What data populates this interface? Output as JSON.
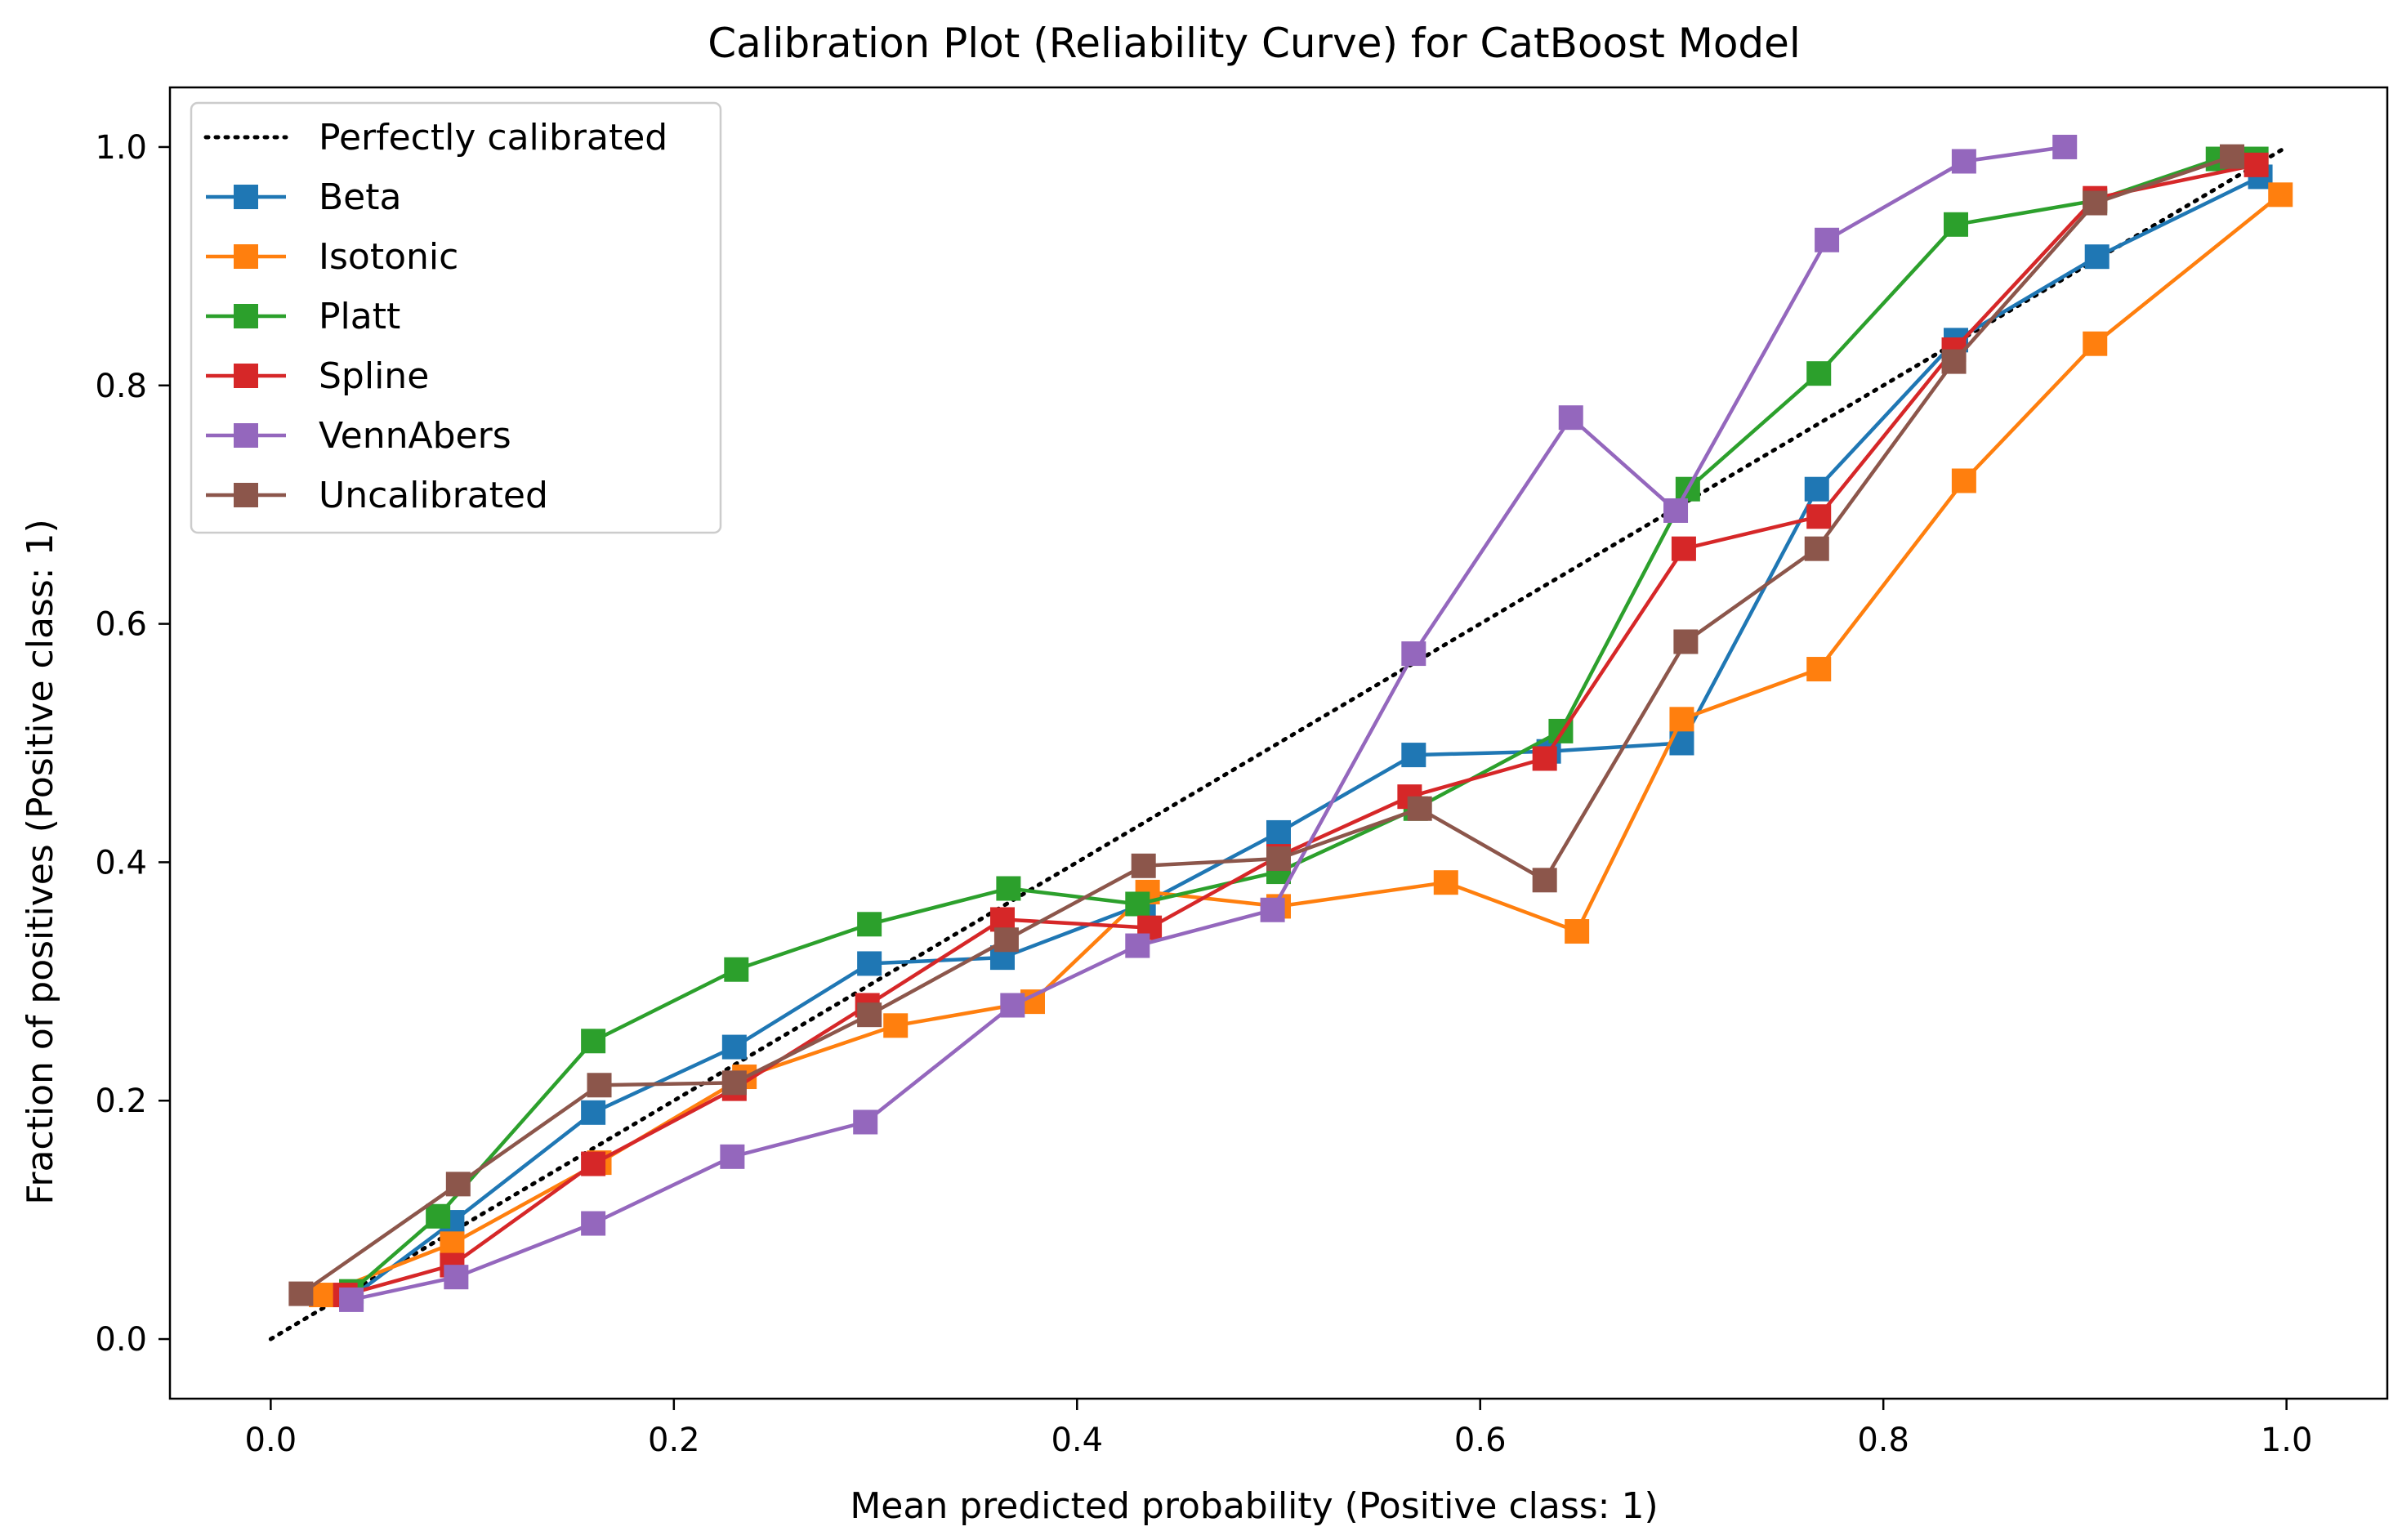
{
  "chart_data": {
    "type": "line",
    "title": "Calibration Plot (Reliability Curve) for CatBoost Model",
    "xlabel": "Mean predicted probability (Positive class: 1)",
    "ylabel": "Fraction of positives (Positive class: 1)",
    "xlim": [
      -0.05,
      1.05
    ],
    "ylim": [
      -0.05,
      1.05
    ],
    "xticks": [
      0.0,
      0.2,
      0.4,
      0.6,
      0.8,
      1.0
    ],
    "xtick_labels": [
      "0.0",
      "0.2",
      "0.4",
      "0.6",
      "0.8",
      "1.0"
    ],
    "yticks": [
      0.0,
      0.2,
      0.4,
      0.6,
      0.8,
      1.0
    ],
    "ytick_labels": [
      "0.0",
      "0.2",
      "0.4",
      "0.6",
      "0.8",
      "1.0"
    ],
    "grid": false,
    "legend_position": "top-left",
    "reference": {
      "name": "Perfectly calibrated",
      "color": "#000000",
      "style": "dotted",
      "x": [
        0.0,
        1.0
      ],
      "y": [
        0.0,
        1.0
      ]
    },
    "series": [
      {
        "name": "Beta",
        "color": "#1f77b4",
        "x": [
          0.04,
          0.09,
          0.16,
          0.23,
          0.297,
          0.363,
          0.433,
          0.5,
          0.567,
          0.634,
          0.7,
          0.767,
          0.836,
          0.906,
          0.987
        ],
        "y": [
          0.035,
          0.098,
          0.19,
          0.245,
          0.315,
          0.32,
          0.365,
          0.425,
          0.49,
          0.493,
          0.5,
          0.713,
          0.838,
          0.908,
          0.975
        ]
      },
      {
        "name": "Isotonic",
        "color": "#ff7f0e",
        "x": [
          0.025,
          0.09,
          0.163,
          0.235,
          0.31,
          0.378,
          0.435,
          0.5,
          0.583,
          0.648,
          0.7,
          0.768,
          0.84,
          0.905,
          0.997
        ],
        "y": [
          0.037,
          0.08,
          0.148,
          0.22,
          0.263,
          0.283,
          0.375,
          0.363,
          0.383,
          0.342,
          0.52,
          0.562,
          0.72,
          0.835,
          0.96
        ]
      },
      {
        "name": "Platt",
        "color": "#2ca02c",
        "x": [
          0.04,
          0.083,
          0.16,
          0.231,
          0.297,
          0.366,
          0.43,
          0.5,
          0.568,
          0.64,
          0.703,
          0.768,
          0.836,
          0.905,
          0.966,
          0.985
        ],
        "y": [
          0.04,
          0.103,
          0.25,
          0.31,
          0.348,
          0.378,
          0.365,
          0.392,
          0.445,
          0.51,
          0.713,
          0.81,
          0.935,
          0.955,
          0.99,
          0.99
        ]
      },
      {
        "name": "Spline",
        "color": "#d62728",
        "x": [
          0.037,
          0.09,
          0.16,
          0.23,
          0.296,
          0.363,
          0.436,
          0.5,
          0.565,
          0.632,
          0.701,
          0.768,
          0.835,
          0.905,
          0.985
        ],
        "y": [
          0.037,
          0.062,
          0.147,
          0.21,
          0.28,
          0.352,
          0.345,
          0.405,
          0.455,
          0.487,
          0.663,
          0.69,
          0.83,
          0.957,
          0.985
        ]
      },
      {
        "name": "VennAbers",
        "color": "#9467bd",
        "x": [
          0.04,
          0.092,
          0.16,
          0.229,
          0.295,
          0.368,
          0.43,
          0.497,
          0.567,
          0.645,
          0.697,
          0.772,
          0.84,
          0.89
        ],
        "y": [
          0.033,
          0.052,
          0.097,
          0.153,
          0.182,
          0.28,
          0.33,
          0.36,
          0.575,
          0.773,
          0.695,
          0.922,
          0.988,
          1.0
        ]
      },
      {
        "name": "Uncalibrated",
        "color": "#8c564b",
        "x": [
          0.015,
          0.093,
          0.163,
          0.23,
          0.297,
          0.365,
          0.433,
          0.5,
          0.57,
          0.632,
          0.702,
          0.767,
          0.835,
          0.905,
          0.973
        ],
        "y": [
          0.038,
          0.13,
          0.213,
          0.215,
          0.272,
          0.335,
          0.397,
          0.403,
          0.445,
          0.385,
          0.585,
          0.663,
          0.82,
          0.953,
          0.992
        ]
      }
    ]
  }
}
